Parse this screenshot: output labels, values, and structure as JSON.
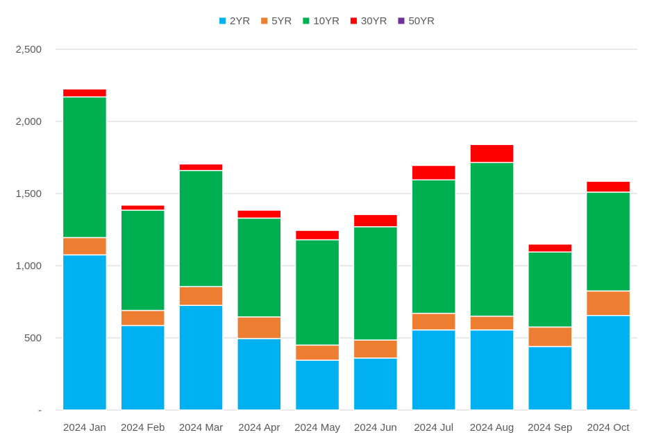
{
  "chart_data": {
    "type": "bar",
    "stacked": true,
    "title": "",
    "xlabel": "",
    "ylabel": "",
    "categories": [
      "2024 Jan",
      "2024 Feb",
      "2024 Mar",
      "2024 Apr",
      "2024 May",
      "2024 Jun",
      "2024 Jul",
      "2024 Aug",
      "2024 Sep",
      "2024 Oct"
    ],
    "series": [
      {
        "name": "2YR",
        "color": "#00B0F0",
        "values": [
          1075,
          585,
          725,
          495,
          345,
          360,
          555,
          555,
          440,
          655
        ]
      },
      {
        "name": "5YR",
        "color": "#ED7D31",
        "values": [
          120,
          105,
          130,
          150,
          105,
          125,
          115,
          95,
          135,
          170
        ]
      },
      {
        "name": "10YR",
        "color": "#00B050",
        "values": [
          975,
          695,
          805,
          685,
          730,
          785,
          925,
          1065,
          520,
          685
        ]
      },
      {
        "name": "30YR",
        "color": "#FF0000",
        "values": [
          55,
          35,
          45,
          55,
          65,
          85,
          100,
          125,
          55,
          75
        ]
      },
      {
        "name": "50YR",
        "color": "#7030A0",
        "values": [
          0,
          0,
          0,
          0,
          0,
          0,
          0,
          0,
          0,
          0
        ]
      }
    ],
    "ylim": [
      0,
      2500
    ],
    "yticks": [
      0,
      500,
      1000,
      1500,
      2000,
      2500
    ],
    "ytick_labels": [
      "-",
      "500",
      "1,000",
      "1,500",
      "2,000",
      "2,500"
    ],
    "grid": true,
    "legend_position": "top-center"
  }
}
